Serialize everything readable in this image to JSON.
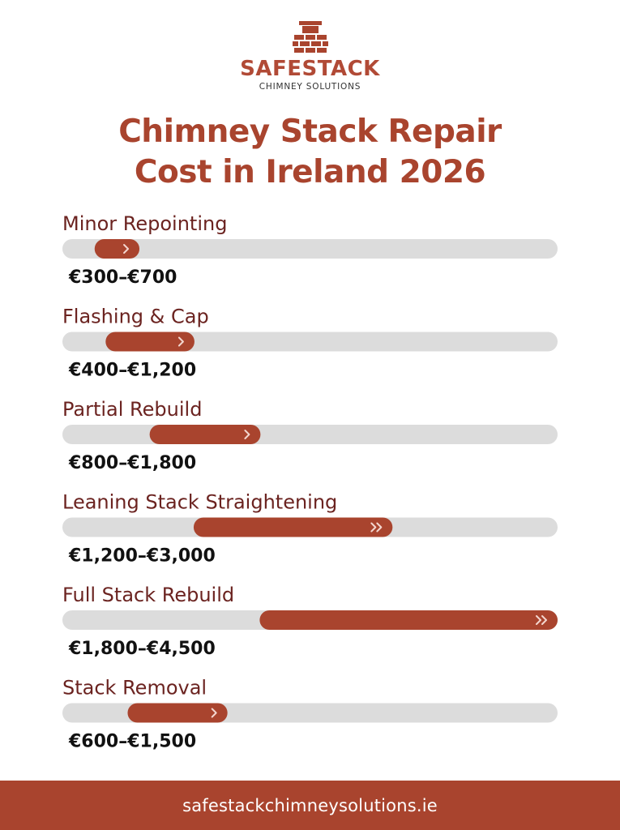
{
  "brand": {
    "name": "SAFESTACK",
    "tagline": "CHIMNEY SOLUTIONS"
  },
  "colors": {
    "accent": "#a9442e",
    "track": "#dcdcdc",
    "label": "#6b2320"
  },
  "footer": {
    "url": "safestackchimneysolutions.ie"
  },
  "chart_data": {
    "type": "bar",
    "orientation": "horizontal-range",
    "title": [
      "Chimney Stack Repair",
      "Cost in Ireland 2026"
    ],
    "currency": "€",
    "categories": [
      "Minor Repointing",
      "Flashing & Cap",
      "Partial Rebuild",
      "Leaning Stack Straightening",
      "Full Stack Rebuild",
      "Stack Removal"
    ],
    "ranges": [
      [
        300,
        700
      ],
      [
        400,
        1200
      ],
      [
        800,
        1800
      ],
      [
        1200,
        3000
      ],
      [
        1800,
        4500
      ],
      [
        600,
        1500
      ]
    ],
    "value_labels": [
      "€300–€700",
      "€400–€1,200",
      "€800–€1,800",
      "€1,200–€3,000",
      "€1,800–€4,500",
      "€600–€1,500"
    ],
    "arrows": [
      1,
      1,
      1,
      2,
      2,
      1
    ],
    "xlim": [
      0,
      4500
    ],
    "grid": false,
    "legend": "none"
  }
}
